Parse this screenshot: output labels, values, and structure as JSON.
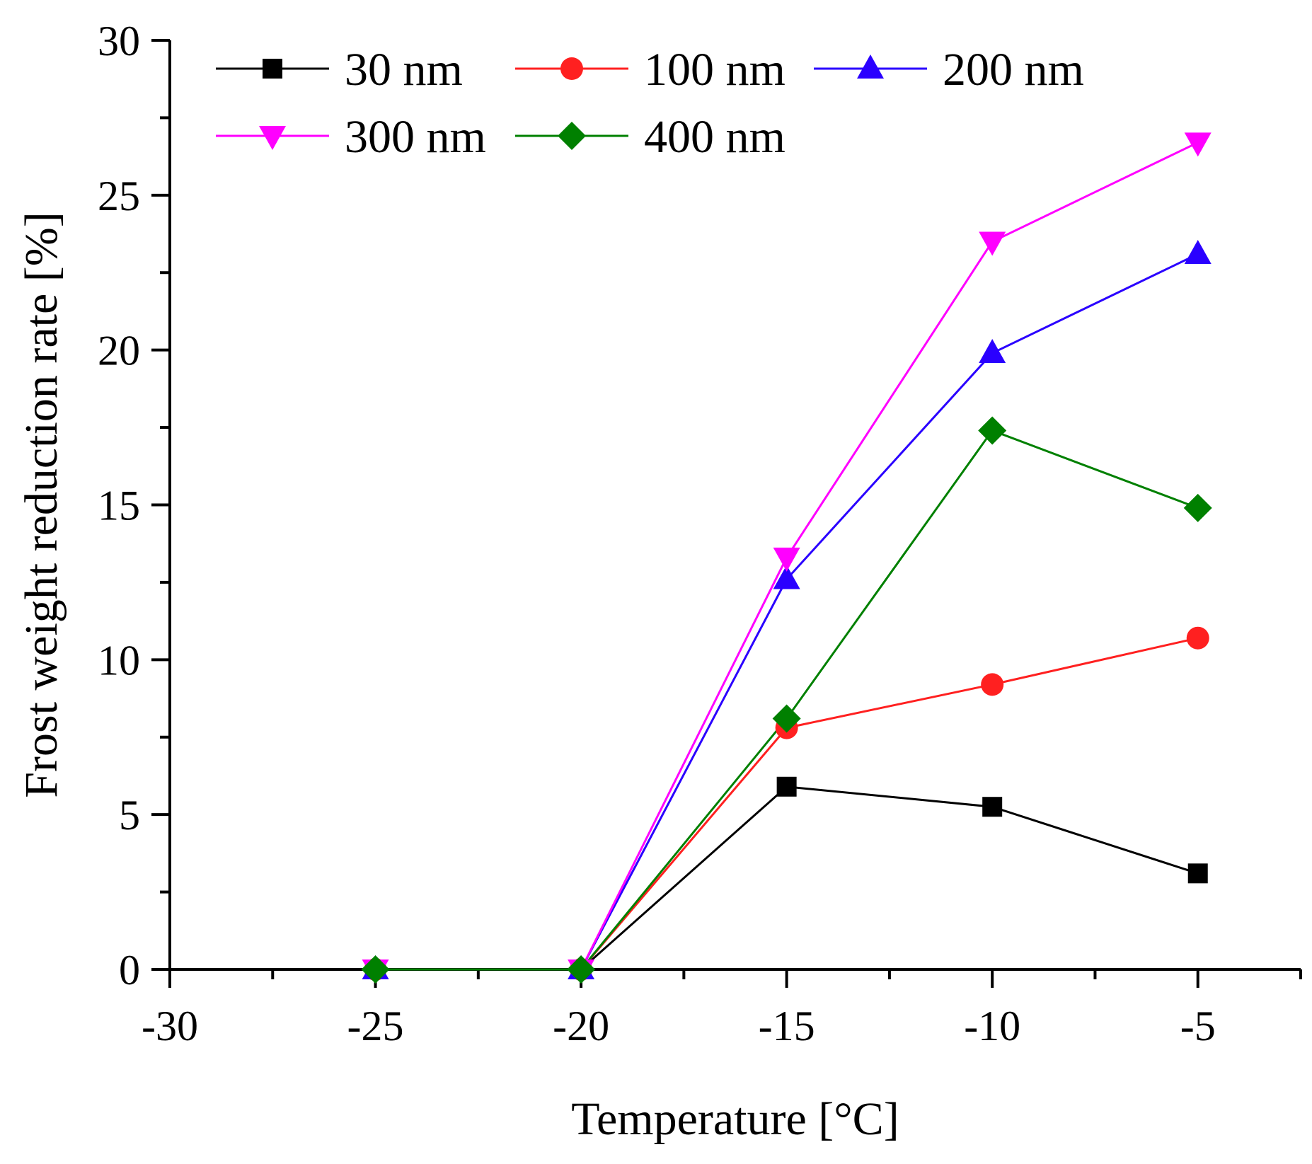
{
  "chart_data": {
    "type": "line",
    "title": "",
    "xlabel": "Temperature [°C]",
    "ylabel": "Frost weight reduction rate [%]",
    "xlim": [
      -30,
      -2.5
    ],
    "ylim": [
      0,
      30
    ],
    "x_ticks": [
      "-30",
      "-25",
      "-20",
      "-15",
      "-10",
      "-5"
    ],
    "y_ticks": [
      "0",
      "5",
      "10",
      "15",
      "20",
      "25",
      "30"
    ],
    "x": [
      -25,
      -20,
      -15,
      -10,
      -5
    ],
    "grid": false,
    "legend_position": "top-left",
    "series": [
      {
        "name": "30 nm",
        "color": "#000000",
        "marker": "square",
        "values": [
          0,
          0,
          5.9,
          5.25,
          3.1
        ]
      },
      {
        "name": "100 nm",
        "color": "#ff2020",
        "marker": "circle",
        "values": [
          0,
          0,
          7.8,
          9.2,
          10.7
        ]
      },
      {
        "name": "200 nm",
        "color": "#2a00ff",
        "marker": "triangle-up",
        "values": [
          0,
          0,
          12.6,
          19.9,
          23.1
        ]
      },
      {
        "name": "300 nm",
        "color": "#ff00ff",
        "marker": "triangle-down",
        "values": [
          0,
          0,
          13.3,
          23.5,
          26.7
        ]
      },
      {
        "name": "400 nm",
        "color": "#008000",
        "marker": "diamond",
        "values": [
          0,
          0,
          8.1,
          17.4,
          14.9
        ]
      }
    ]
  }
}
